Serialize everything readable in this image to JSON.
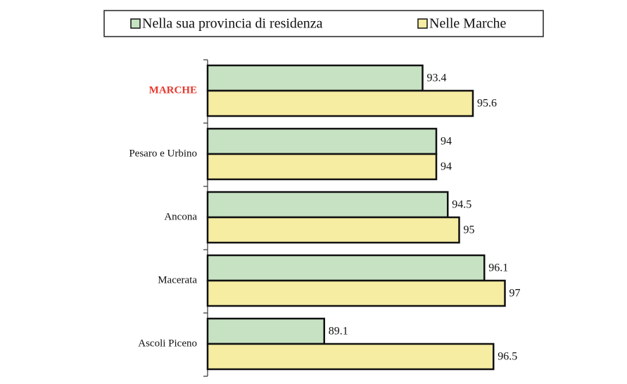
{
  "chart_data": {
    "type": "hbar",
    "categories": [
      "MARCHE",
      "Pesaro e Urbino",
      "Ancona",
      "Macerata",
      "Ascoli Piceno"
    ],
    "category_colors": [
      "#e8372c",
      "#111111",
      "#111111",
      "#111111",
      "#111111"
    ],
    "series": [
      {
        "name": "Nella sua provincia di residenza",
        "color": "#c6e2c2",
        "values": [
          93.4,
          94,
          94.5,
          96.1,
          89.1
        ]
      },
      {
        "name": "Nelle Marche",
        "color": "#f6eca2",
        "values": [
          95.6,
          94,
          95,
          97,
          96.5
        ]
      }
    ],
    "xlim": [
      84,
      100
    ]
  }
}
